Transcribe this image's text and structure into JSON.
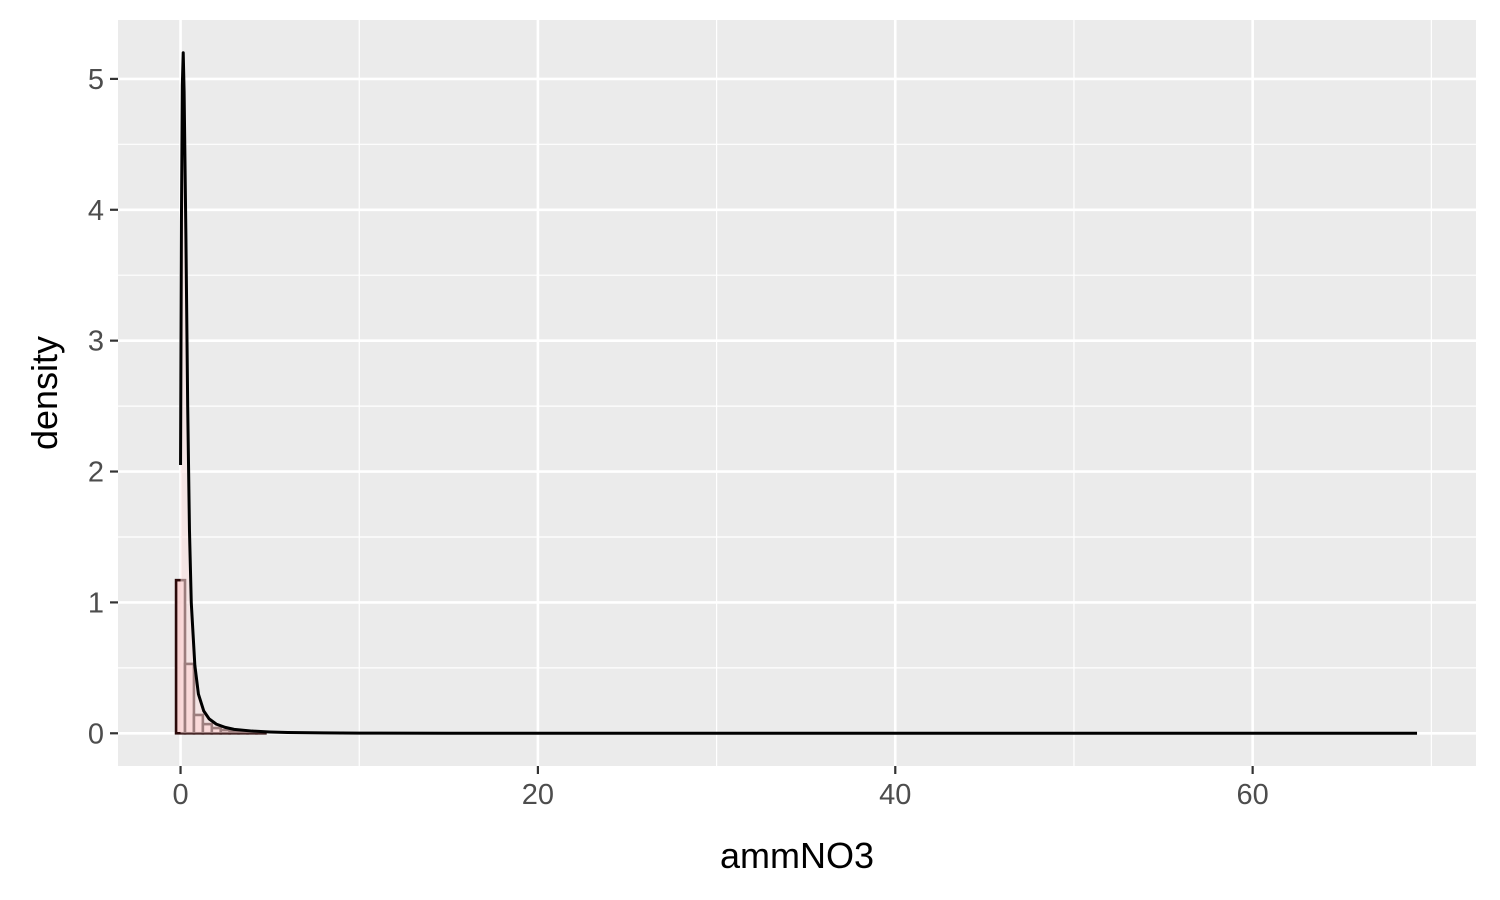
{
  "chart_data": {
    "type": "histogram",
    "xlabel": "ammNO3",
    "ylabel": "density",
    "xlim": [
      -3.5,
      72.5
    ],
    "ylim": [
      -0.25,
      5.45
    ],
    "x_ticks": [
      0,
      20,
      40,
      60
    ],
    "y_ticks": [
      0,
      1,
      2,
      3,
      4,
      5
    ],
    "grid": true,
    "panel_background": "#ebebeb",
    "grid_color": "#ffffff",
    "histogram": {
      "bin_width": 0.5,
      "fill": "#f8d3d3",
      "outline": "#2b0a0a",
      "bins": [
        {
          "x0": -0.25,
          "x1": 0.25,
          "density": 1.17
        },
        {
          "x0": 0.25,
          "x1": 0.75,
          "density": 0.53
        },
        {
          "x0": 0.75,
          "x1": 1.25,
          "density": 0.14
        },
        {
          "x0": 1.25,
          "x1": 1.75,
          "density": 0.07
        },
        {
          "x0": 1.75,
          "x1": 2.25,
          "density": 0.04
        },
        {
          "x0": 2.25,
          "x1": 2.75,
          "density": 0.025
        },
        {
          "x0": 2.75,
          "x1": 3.25,
          "density": 0.015
        },
        {
          "x0": 3.25,
          "x1": 3.75,
          "density": 0.01
        },
        {
          "x0": 3.75,
          "x1": 4.25,
          "density": 0.007
        },
        {
          "x0": 4.25,
          "x1": 4.75,
          "density": 0.005
        }
      ]
    },
    "density_curve": {
      "color": "#000000",
      "fill": "#fbdede",
      "points": [
        {
          "x": 0.0,
          "y": 2.05
        },
        {
          "x": 0.05,
          "y": 3.9
        },
        {
          "x": 0.1,
          "y": 4.95
        },
        {
          "x": 0.15,
          "y": 5.2
        },
        {
          "x": 0.2,
          "y": 4.9
        },
        {
          "x": 0.3,
          "y": 3.8
        },
        {
          "x": 0.4,
          "y": 2.5
        },
        {
          "x": 0.5,
          "y": 1.55
        },
        {
          "x": 0.6,
          "y": 1.0
        },
        {
          "x": 0.8,
          "y": 0.52
        },
        {
          "x": 1.0,
          "y": 0.3
        },
        {
          "x": 1.3,
          "y": 0.17
        },
        {
          "x": 1.6,
          "y": 0.11
        },
        {
          "x": 2.0,
          "y": 0.07
        },
        {
          "x": 2.5,
          "y": 0.045
        },
        {
          "x": 3.0,
          "y": 0.03
        },
        {
          "x": 4.0,
          "y": 0.017
        },
        {
          "x": 5.0,
          "y": 0.01
        },
        {
          "x": 6.0,
          "y": 0.006
        },
        {
          "x": 8.0,
          "y": 0.003
        },
        {
          "x": 10.0,
          "y": 0.0015
        },
        {
          "x": 15.0,
          "y": 0.0005
        },
        {
          "x": 20.0,
          "y": 0.0002
        },
        {
          "x": 30.0,
          "y": 0.0
        },
        {
          "x": 69.2,
          "y": 0.0
        }
      ]
    }
  }
}
